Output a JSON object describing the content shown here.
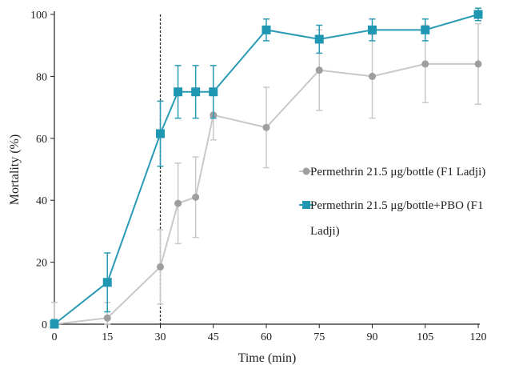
{
  "chart_data": {
    "type": "line",
    "xlabel": "Time (min)",
    "ylabel": "Mortality (%)",
    "xlim": [
      0,
      120
    ],
    "ylim": [
      0,
      100
    ],
    "xticks": [
      0,
      15,
      30,
      45,
      60,
      75,
      90,
      105,
      120
    ],
    "yticks": [
      0,
      20,
      40,
      60,
      80,
      100
    ],
    "grid": false,
    "reference_line": {
      "x": 30,
      "style": "dotted"
    },
    "legend_position": "center-right",
    "series": [
      {
        "name": "Permethrin 21.5 μg/bottle (F1 Ladji)",
        "marker": "circle",
        "color": "#c8c8c8",
        "marker_color": "#9e9e9e",
        "x": [
          0,
          15,
          30,
          35,
          40,
          45,
          60,
          75,
          90,
          105,
          120
        ],
        "y": [
          0,
          2,
          18.5,
          39,
          41,
          67.5,
          63.5,
          82,
          80,
          84,
          84
        ],
        "error": [
          7,
          5,
          12,
          13,
          13,
          8,
          13,
          13,
          13.5,
          12.5,
          13
        ]
      },
      {
        "name": "Permethrin 21.5 μg/bottle+PBO (F1 Ladji)",
        "marker": "square",
        "color": "#2a9bb5",
        "marker_color": "#1f97b3",
        "x": [
          0,
          15,
          30,
          35,
          40,
          45,
          60,
          75,
          90,
          105,
          120
        ],
        "y": [
          0,
          13.5,
          61.5,
          75,
          75,
          75,
          95,
          92,
          95,
          95,
          100
        ],
        "error": [
          1.5,
          9.5,
          10.5,
          8.5,
          8.5,
          8.5,
          3.5,
          4.5,
          3.5,
          3.5,
          2
        ]
      }
    ]
  },
  "legend": {
    "series1_label": "Permethrin 21.5 μg/bottle (F1 Ladji)",
    "series2_line1": "Permethrin 21.5 μg/bottle+PBO (F1",
    "series2_line2": "Ladji)"
  }
}
